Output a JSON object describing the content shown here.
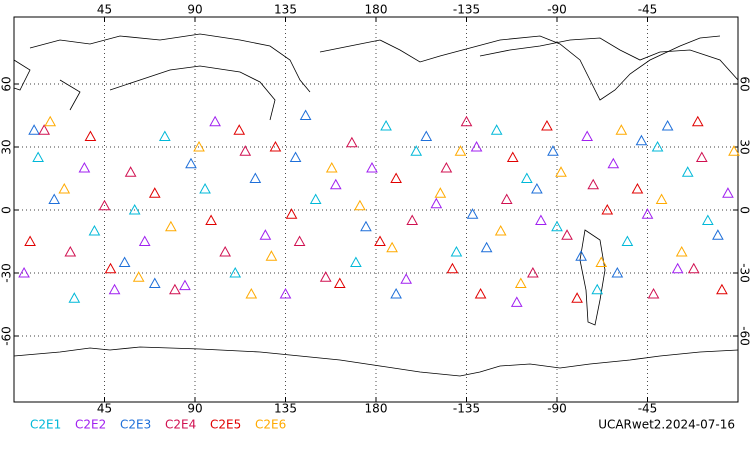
{
  "chart_data": {
    "type": "scatter",
    "title": "UCARwet2.2024-07-16",
    "xlim": [
      0,
      360
    ],
    "ylim": [
      -90,
      90
    ],
    "xticks": [
      45,
      90,
      135,
      180,
      {
        "value": 225,
        "label": "-135"
      },
      {
        "value": 270,
        "label": "-90"
      },
      {
        "value": 315,
        "label": "-45"
      }
    ],
    "yticks": [
      -60,
      -30,
      0,
      30,
      60
    ],
    "grid": true,
    "legend": "bottom-left",
    "series": [
      {
        "name": "C2E1",
        "color": "#00b8d8",
        "x": [
          12,
          40,
          75,
          110,
          150,
          185,
          220,
          255,
          290,
          320,
          345,
          30,
          95,
          170,
          240,
          305,
          60,
          200,
          270,
          335
        ],
        "values": [
          25,
          -10,
          35,
          -30,
          5,
          40,
          -20,
          15,
          -38,
          30,
          -5,
          -42,
          10,
          -25,
          38,
          -15,
          0,
          28,
          -8,
          18
        ]
      },
      {
        "name": "C2E2",
        "color": "#a020f0",
        "x": [
          5,
          35,
          65,
          100,
          135,
          160,
          195,
          230,
          262,
          298,
          330,
          355,
          85,
          125,
          210,
          250,
          285,
          315,
          50,
          178
        ],
        "values": [
          -30,
          20,
          -15,
          42,
          -40,
          12,
          -33,
          30,
          -5,
          22,
          -28,
          8,
          -36,
          -12,
          3,
          -44,
          35,
          -2,
          -38,
          20
        ]
      },
      {
        "name": "C2E3",
        "color": "#1e6fd9",
        "x": [
          20,
          55,
          88,
          120,
          145,
          175,
          205,
          235,
          268,
          300,
          325,
          350,
          140,
          190,
          260,
          312,
          70,
          228,
          282,
          10
        ],
        "values": [
          5,
          -25,
          22,
          15,
          45,
          -8,
          35,
          -18,
          28,
          -30,
          40,
          -12,
          25,
          -40,
          10,
          33,
          -35,
          -2,
          -22,
          38
        ]
      },
      {
        "name": "C2E4",
        "color": "#d01050",
        "x": [
          15,
          45,
          80,
          115,
          142,
          168,
          198,
          225,
          258,
          288,
          318,
          342,
          58,
          105,
          215,
          275,
          338,
          155,
          245,
          28
        ],
        "values": [
          38,
          2,
          -38,
          28,
          -15,
          32,
          -5,
          42,
          -30,
          12,
          -40,
          25,
          18,
          -20,
          20,
          -12,
          -28,
          -32,
          5,
          -20
        ]
      },
      {
        "name": "C2E5",
        "color": "#e00000",
        "x": [
          8,
          38,
          70,
          98,
          130,
          162,
          190,
          218,
          248,
          280,
          310,
          340,
          112,
          182,
          232,
          295,
          48,
          138,
          265,
          352
        ],
        "values": [
          -15,
          35,
          8,
          -5,
          30,
          -35,
          15,
          -28,
          25,
          -42,
          10,
          42,
          38,
          -15,
          -40,
          0,
          -28,
          -2,
          40,
          -38
        ]
      },
      {
        "name": "C2E6",
        "color": "#ffaa00",
        "x": [
          25,
          62,
          92,
          128,
          158,
          188,
          212,
          242,
          272,
          302,
          332,
          358,
          78,
          172,
          222,
          292,
          18,
          118,
          252,
          322
        ],
        "values": [
          10,
          -32,
          30,
          -22,
          20,
          -18,
          8,
          -10,
          18,
          38,
          -20,
          28,
          -8,
          2,
          28,
          -25,
          42,
          -40,
          -35,
          5
        ]
      }
    ]
  }
}
